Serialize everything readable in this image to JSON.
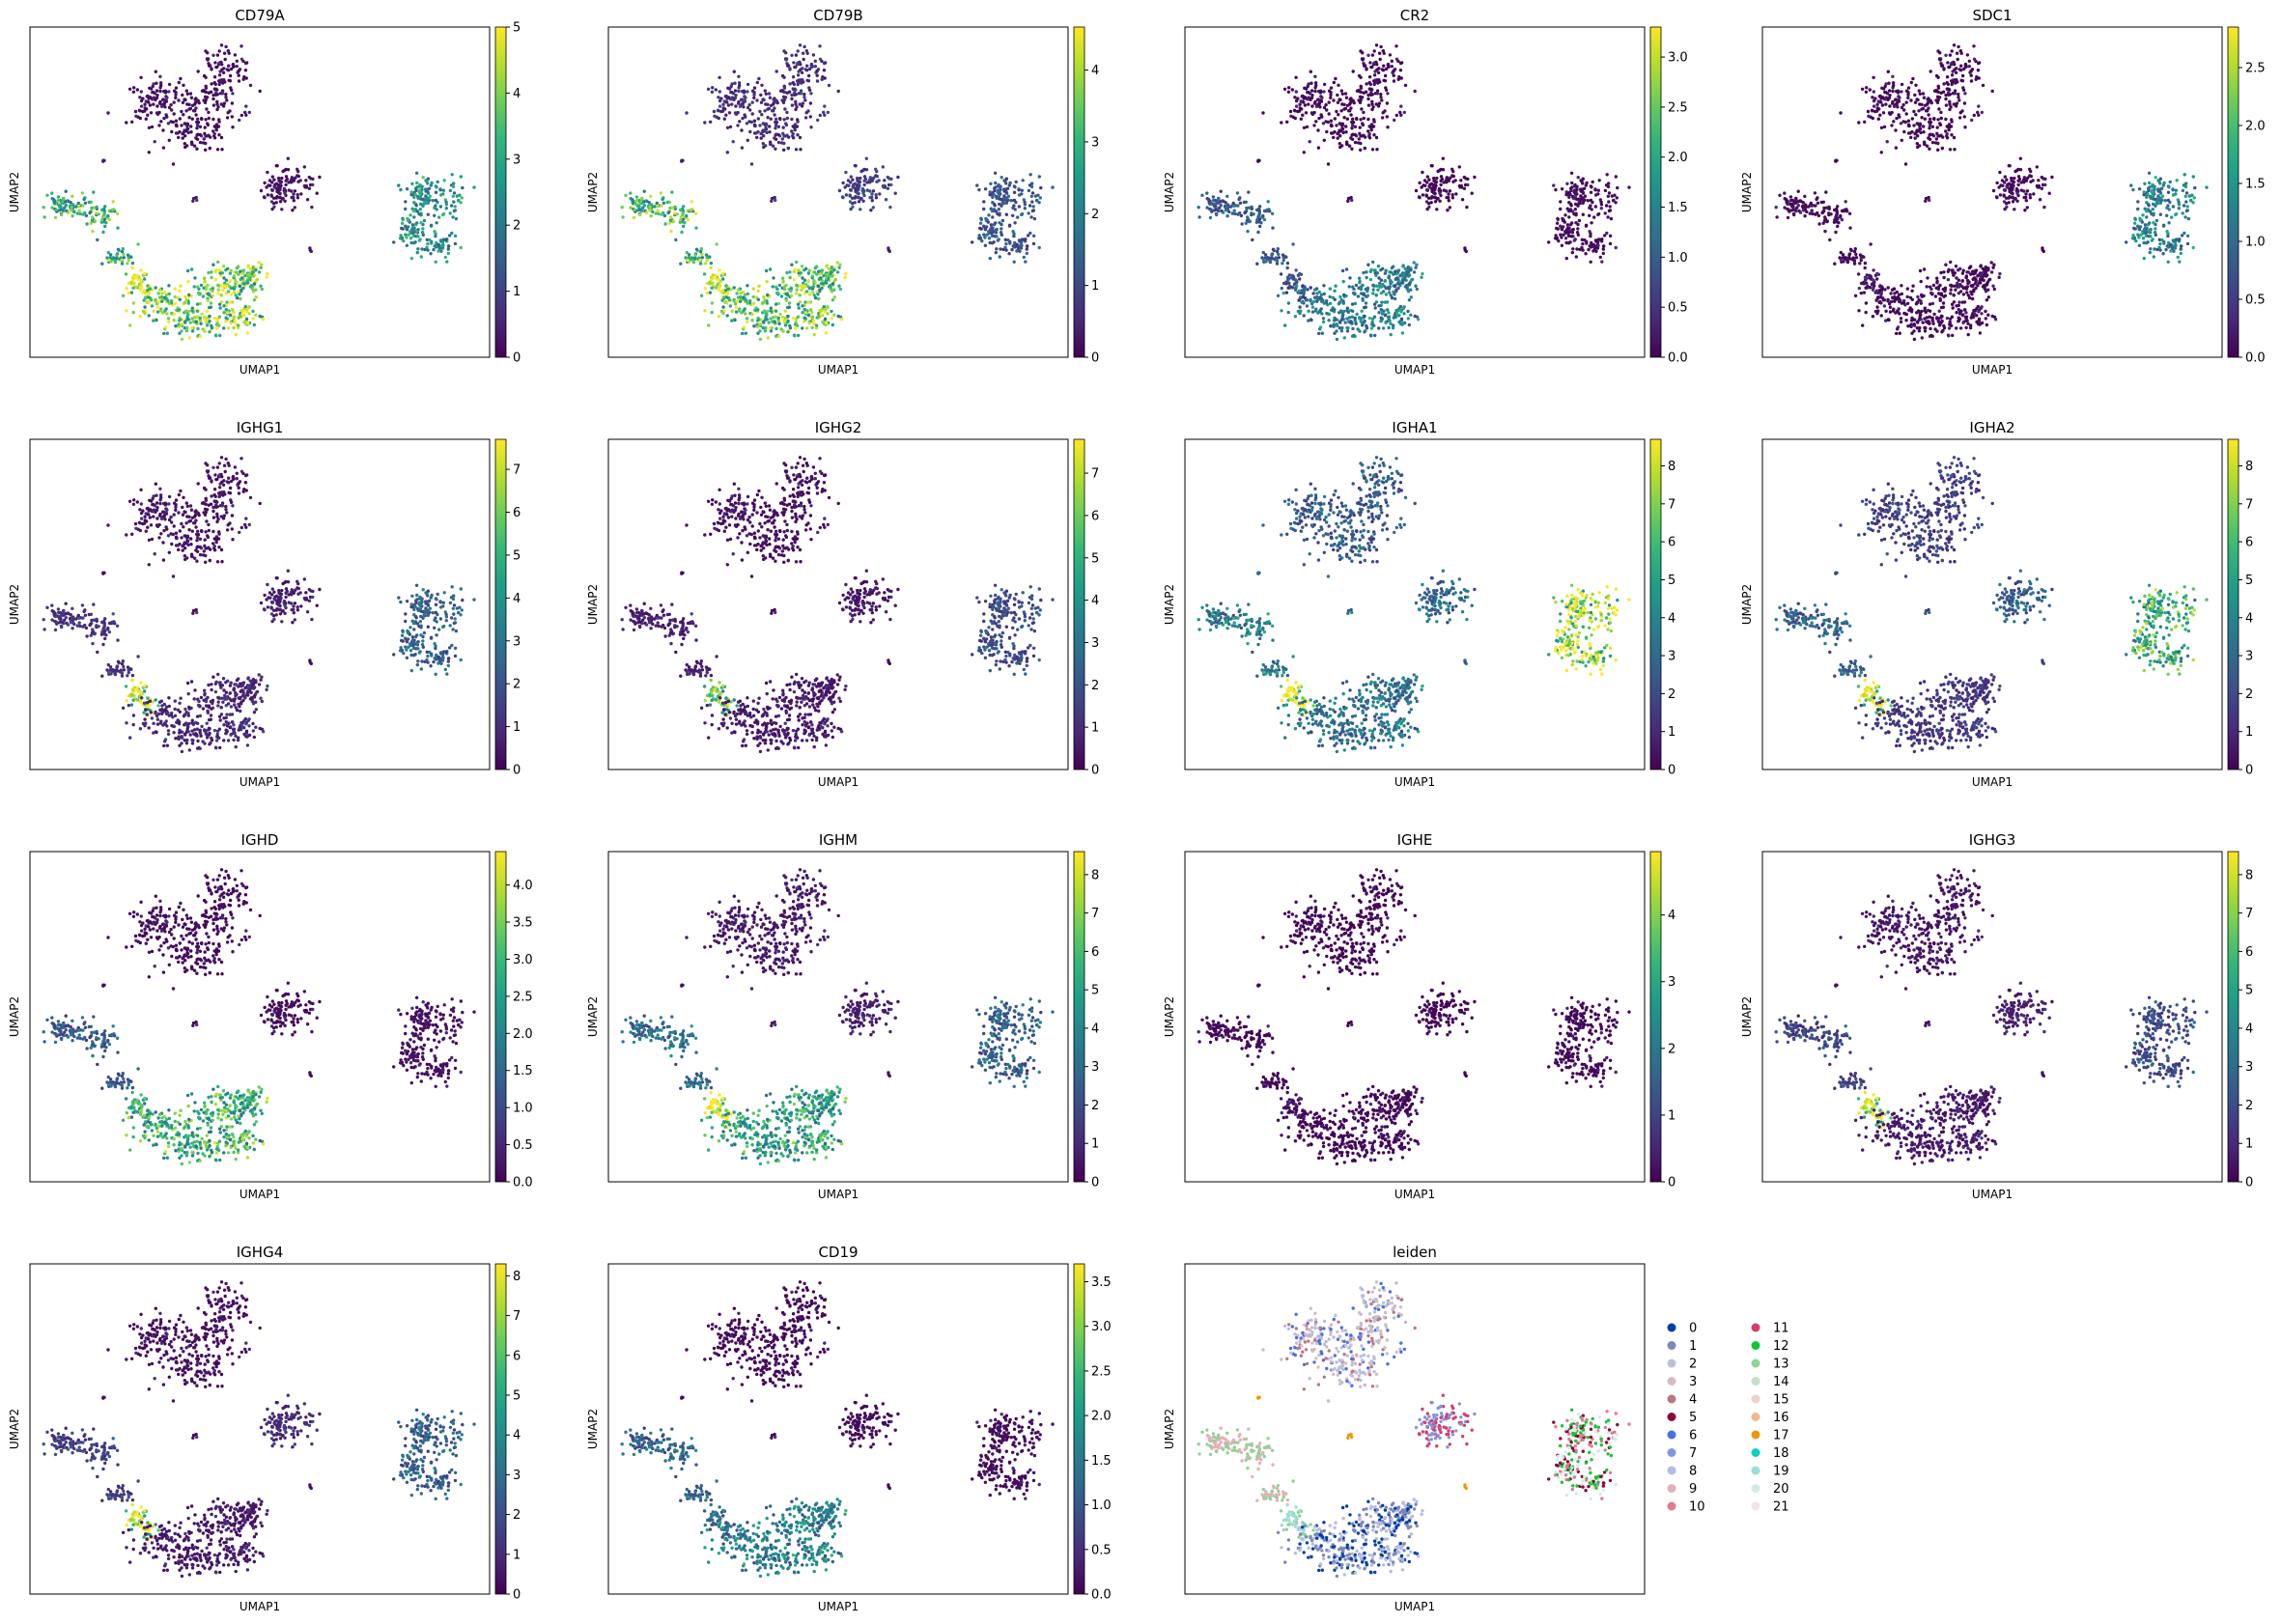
{
  "figure": {
    "colormap": "viridis",
    "colormap_stops": [
      "#440154",
      "#482878",
      "#3e4989",
      "#31688e",
      "#26828e",
      "#1f9e89",
      "#35b779",
      "#6ece58",
      "#b5de2b",
      "#fde725"
    ],
    "background_color": "#ffffff",
    "ui_text": {
      "close": ""
    }
  },
  "chart_data": [
    {
      "type": "scatter",
      "title": "CD79A",
      "xlabel": "UMAP1",
      "ylabel": "UMAP2",
      "colorbar_ticks": [
        "0",
        "1",
        "2",
        "3",
        "4",
        "5"
      ],
      "colorbar_range": [
        0,
        5
      ],
      "expression": {
        "c_top": 0.04,
        "c_mid": 0.05,
        "c_small": 0.06,
        "c_right": 0.48,
        "c_left": 0.62,
        "c_bottom": 0.75,
        "c_streak": 0.85
      }
    },
    {
      "type": "scatter",
      "title": "CD79B",
      "xlabel": "UMAP1",
      "ylabel": "UMAP2",
      "colorbar_ticks": [
        "0",
        "1",
        "2",
        "3",
        "4"
      ],
      "colorbar_range": [
        0,
        4.6
      ],
      "expression": {
        "c_top": 0.12,
        "c_mid": 0.18,
        "c_small": 0.08,
        "c_right": 0.25,
        "c_left": 0.68,
        "c_bottom": 0.7,
        "c_streak": 0.8
      }
    },
    {
      "type": "scatter",
      "title": "CR2",
      "xlabel": "UMAP1",
      "ylabel": "UMAP2",
      "colorbar_ticks": [
        "0.0",
        "0.5",
        "1.0",
        "1.5",
        "2.0",
        "2.5",
        "3.0"
      ],
      "colorbar_range": [
        0,
        3.3
      ],
      "expression": {
        "c_top": 0.02,
        "c_mid": 0.02,
        "c_small": 0.02,
        "c_right": 0.03,
        "c_left": 0.28,
        "c_bottom": 0.4,
        "c_streak": 0.2
      }
    },
    {
      "type": "scatter",
      "title": "SDC1",
      "xlabel": "UMAP1",
      "ylabel": "UMAP2",
      "colorbar_ticks": [
        "0.0",
        "0.5",
        "1.0",
        "1.5",
        "2.0",
        "2.5"
      ],
      "colorbar_range": [
        0,
        2.85
      ],
      "expression": {
        "c_top": 0.02,
        "c_mid": 0.03,
        "c_small": 0.02,
        "c_right": 0.42,
        "c_left": 0.03,
        "c_bottom": 0.02,
        "c_streak": 0.05
      }
    },
    {
      "type": "scatter",
      "title": "IGHG1",
      "xlabel": "UMAP1",
      "ylabel": "UMAP2",
      "colorbar_ticks": [
        "0",
        "1",
        "2",
        "3",
        "4",
        "5",
        "6",
        "7"
      ],
      "colorbar_range": [
        0,
        7.7
      ],
      "expression": {
        "c_top": 0.05,
        "c_mid": 0.08,
        "c_small": 0.04,
        "c_right": 0.3,
        "c_left": 0.14,
        "c_bottom": 0.1,
        "c_streak": 0.8
      }
    },
    {
      "type": "scatter",
      "title": "IGHG2",
      "xlabel": "UMAP1",
      "ylabel": "UMAP2",
      "colorbar_ticks": [
        "0",
        "1",
        "2",
        "3",
        "4",
        "5",
        "6",
        "7"
      ],
      "colorbar_range": [
        0,
        7.8
      ],
      "expression": {
        "c_top": 0.04,
        "c_mid": 0.06,
        "c_small": 0.03,
        "c_right": 0.22,
        "c_left": 0.08,
        "c_bottom": 0.06,
        "c_streak": 0.65
      }
    },
    {
      "type": "scatter",
      "title": "IGHA1",
      "xlabel": "UMAP1",
      "ylabel": "UMAP2",
      "colorbar_ticks": [
        "0",
        "1",
        "2",
        "3",
        "4",
        "5",
        "6",
        "7",
        "8"
      ],
      "colorbar_range": [
        0,
        8.7
      ],
      "expression": {
        "c_top": 0.28,
        "c_mid": 0.34,
        "c_small": 0.3,
        "c_right": 0.88,
        "c_left": 0.42,
        "c_bottom": 0.36,
        "c_streak": 0.9
      }
    },
    {
      "type": "scatter",
      "title": "IGHA2",
      "xlabel": "UMAP1",
      "ylabel": "UMAP2",
      "colorbar_ticks": [
        "0",
        "1",
        "2",
        "3",
        "4",
        "5",
        "6",
        "7",
        "8"
      ],
      "colorbar_range": [
        0,
        8.7
      ],
      "expression": {
        "c_top": 0.18,
        "c_mid": 0.3,
        "c_small": 0.2,
        "c_right": 0.62,
        "c_left": 0.32,
        "c_bottom": 0.15,
        "c_streak": 0.85
      }
    },
    {
      "type": "scatter",
      "title": "IGHD",
      "xlabel": "UMAP1",
      "ylabel": "UMAP2",
      "colorbar_ticks": [
        "0.0",
        "0.5",
        "1.0",
        "1.5",
        "2.0",
        "2.5",
        "3.0",
        "3.5",
        "4.0"
      ],
      "colorbar_range": [
        0,
        4.45
      ],
      "expression": {
        "c_top": 0.03,
        "c_mid": 0.03,
        "c_small": 0.03,
        "c_right": 0.04,
        "c_left": 0.28,
        "c_bottom": 0.62,
        "c_streak": 0.55
      }
    },
    {
      "type": "scatter",
      "title": "IGHM",
      "xlabel": "UMAP1",
      "ylabel": "UMAP2",
      "colorbar_ticks": [
        "0",
        "1",
        "2",
        "3",
        "4",
        "5",
        "6",
        "7",
        "8"
      ],
      "colorbar_range": [
        0,
        8.6
      ],
      "expression": {
        "c_top": 0.06,
        "c_mid": 0.08,
        "c_small": 0.05,
        "c_right": 0.3,
        "c_left": 0.36,
        "c_bottom": 0.55,
        "c_streak": 0.9
      }
    },
    {
      "type": "scatter",
      "title": "IGHE",
      "xlabel": "UMAP1",
      "ylabel": "UMAP2",
      "colorbar_ticks": [
        "0",
        "1",
        "2",
        "3",
        "4"
      ],
      "colorbar_range": [
        0,
        4.95
      ],
      "expression": {
        "c_top": 0.01,
        "c_mid": 0.01,
        "c_small": 0.01,
        "c_right": 0.02,
        "c_left": 0.02,
        "c_bottom": 0.01,
        "c_streak": 0.03
      }
    },
    {
      "type": "scatter",
      "title": "IGHG3",
      "xlabel": "UMAP1",
      "ylabel": "UMAP2",
      "colorbar_ticks": [
        "0",
        "1",
        "2",
        "3",
        "4",
        "5",
        "6",
        "7",
        "8"
      ],
      "colorbar_range": [
        0,
        8.6
      ],
      "expression": {
        "c_top": 0.05,
        "c_mid": 0.08,
        "c_small": 0.04,
        "c_right": 0.22,
        "c_left": 0.2,
        "c_bottom": 0.06,
        "c_streak": 0.8
      }
    },
    {
      "type": "scatter",
      "title": "IGHG4",
      "xlabel": "UMAP1",
      "ylabel": "UMAP2",
      "colorbar_ticks": [
        "0",
        "1",
        "2",
        "3",
        "4",
        "5",
        "6",
        "7",
        "8"
      ],
      "colorbar_range": [
        0,
        8.3
      ],
      "expression": {
        "c_top": 0.04,
        "c_mid": 0.12,
        "c_small": 0.04,
        "c_right": 0.3,
        "c_left": 0.18,
        "c_bottom": 0.06,
        "c_streak": 0.8
      }
    },
    {
      "type": "scatter",
      "title": "CD19",
      "xlabel": "UMAP1",
      "ylabel": "UMAP2",
      "colorbar_ticks": [
        "0.0",
        "0.5",
        "1.0",
        "1.5",
        "2.0",
        "2.5",
        "3.0",
        "3.5"
      ],
      "colorbar_range": [
        0,
        3.7
      ],
      "expression": {
        "c_top": 0.02,
        "c_mid": 0.03,
        "c_small": 0.02,
        "c_right": 0.03,
        "c_left": 0.32,
        "c_bottom": 0.42,
        "c_streak": 0.3
      }
    },
    {
      "type": "scatter",
      "title": "leiden",
      "xlabel": "UMAP1",
      "ylabel": "UMAP2",
      "categorical": true,
      "legend": [
        "0",
        "1",
        "2",
        "3",
        "4",
        "5",
        "6",
        "7",
        "8",
        "9",
        "10",
        "11",
        "12",
        "13",
        "14",
        "15",
        "16",
        "17",
        "18",
        "19",
        "20",
        "21"
      ],
      "legend_colors": [
        "#023fa5",
        "#7d87b9",
        "#bec1d4",
        "#d6bcc0",
        "#bb7784",
        "#8e063b",
        "#4a6fe3",
        "#8595e1",
        "#b5bbe3",
        "#e6afb9",
        "#e07b91",
        "#d33f6a",
        "#11c638",
        "#8dd593",
        "#c6dec7",
        "#ead3c6",
        "#f0b98d",
        "#ef9708",
        "#0fcfc0",
        "#9cded6",
        "#d5eae7",
        "#f3e1eb"
      ],
      "cluster_colors": {
        "c_top": [
          "3",
          "4",
          "6",
          "2",
          "8"
        ],
        "c_mid": [
          "7",
          "11"
        ],
        "c_small": [
          "17"
        ],
        "c_streak": [
          "13",
          "19"
        ],
        "c_left": [
          "9",
          "13"
        ],
        "c_bottom": [
          "0",
          "1",
          "8"
        ],
        "c_right": [
          "5",
          "12",
          "10",
          "20"
        ]
      }
    }
  ]
}
